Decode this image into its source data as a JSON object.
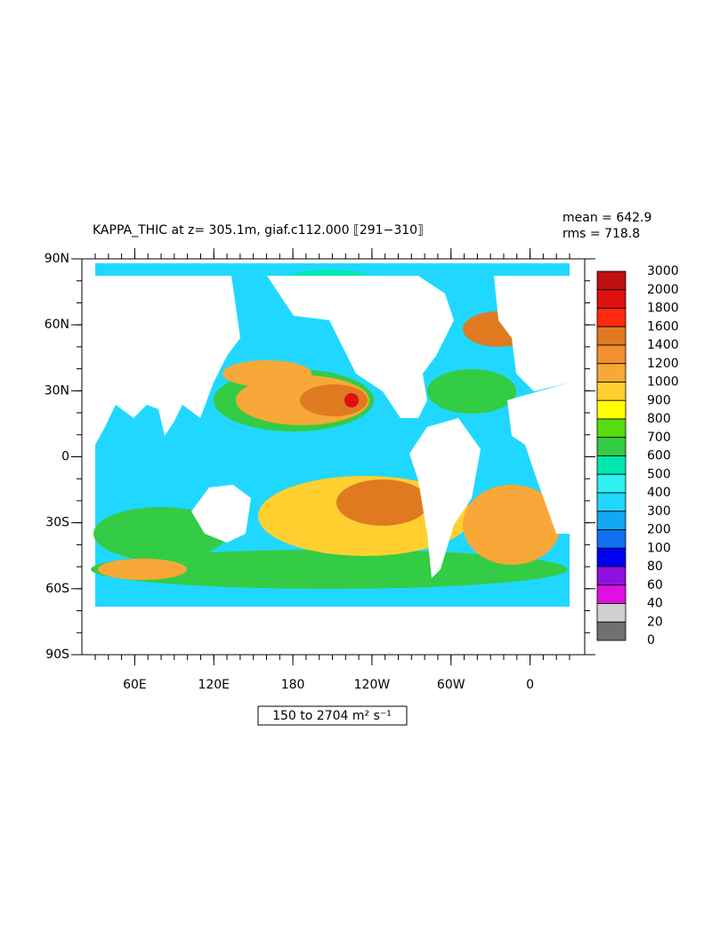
{
  "chart_data": {
    "type": "contour-map",
    "title": "KAPPA_THIC at z= 305.1m, giaf.c112.000 ⟦291−310⟧",
    "mean_label": "mean = 642.9",
    "rms_label": "rms = 718.8",
    "range_label": "150 to 2704 m² s⁻¹",
    "xlim": [
      30,
      390
    ],
    "ylim": [
      -90,
      90
    ],
    "xticks": [
      {
        "value": 60,
        "label": "60E"
      },
      {
        "value": 120,
        "label": "120E"
      },
      180,
      {
        "value": 240,
        "label": "120W"
      },
      {
        "value": 300,
        "label": "60W"
      },
      {
        "value": 360,
        "label": "0"
      }
    ],
    "yticks": [
      {
        "value": -90,
        "label": "90S"
      },
      {
        "value": -60,
        "label": "60S"
      },
      {
        "value": -30,
        "label": "30S"
      },
      0,
      {
        "value": 30,
        "label": "30N"
      },
      {
        "value": 60,
        "label": "60N"
      },
      {
        "value": 90,
        "label": "90N"
      }
    ],
    "levels": [
      3000,
      2000,
      1800,
      1600,
      1400,
      1200,
      1000,
      900,
      800,
      700,
      600,
      500,
      400,
      300,
      200,
      100,
      80,
      60,
      40,
      20,
      0
    ],
    "colors": [
      "#c01010",
      "#e01010",
      "#ff2a10",
      "#e07a20",
      "#f09030",
      "#f8a838",
      "#ffd030",
      "#ffff00",
      "#55dd10",
      "#33cc44",
      "#00e8b0",
      "#30f0f0",
      "#20d8ff",
      "#10a8f0",
      "#1070f0",
      "#0000f0",
      "#9010e0",
      "#e010e0",
      "#d0d0d0",
      "#707070"
    ]
  }
}
